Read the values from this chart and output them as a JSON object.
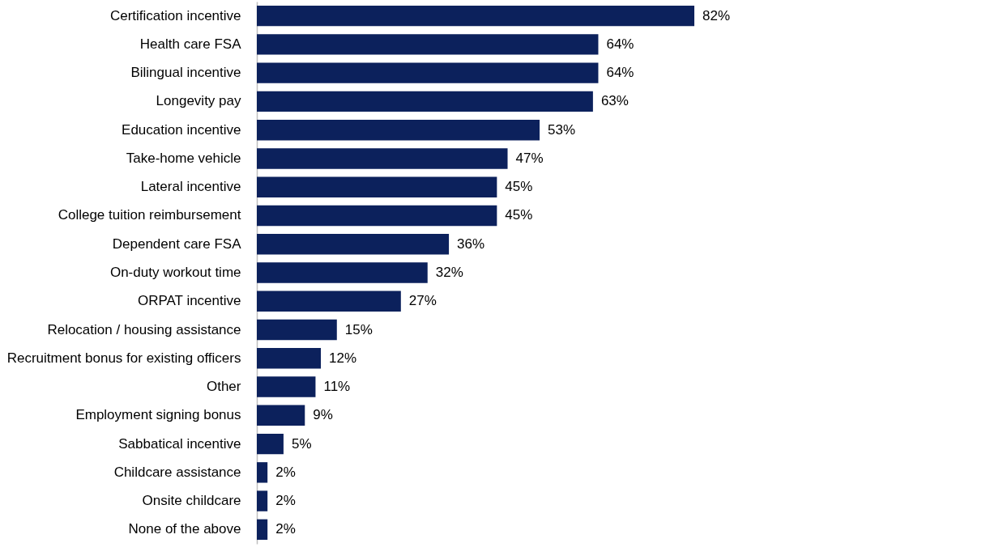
{
  "chart_data": {
    "type": "bar",
    "orientation": "horizontal",
    "categories": [
      "Certification incentive",
      "Health care FSA",
      "Bilingual incentive",
      "Longevity pay",
      "Education incentive",
      "Take-home vehicle",
      "Lateral incentive",
      "College tuition reimbursement",
      "Dependent care FSA",
      "On-duty workout time",
      "ORPAT incentive",
      "Relocation / housing assistance",
      "Recruitment bonus for existing officers",
      "Other",
      "Employment signing bonus",
      "Sabbatical incentive",
      "Childcare assistance",
      "Onsite childcare",
      "None of the above"
    ],
    "values": [
      82,
      64,
      64,
      63,
      53,
      47,
      45,
      45,
      36,
      32,
      27,
      15,
      12,
      11,
      9,
      5,
      2,
      2,
      2
    ],
    "value_labels": [
      "82%",
      "64%",
      "64%",
      "63%",
      "53%",
      "47%",
      "45%",
      "45%",
      "36%",
      "32%",
      "27%",
      "15%",
      "12%",
      "11%",
      "9%",
      "5%",
      "2%",
      "2%",
      "2%"
    ],
    "color": "#0c215c",
    "grid": false
  }
}
